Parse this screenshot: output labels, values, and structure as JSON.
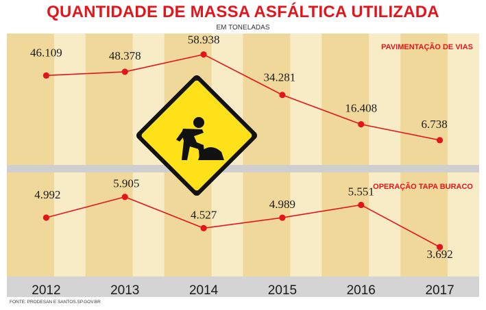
{
  "title": "QUANTIDADE DE MASSA ASFÁLTICA UTILIZADA",
  "subtitle": "EM TONELADAS",
  "source": "FONTE: PRODESAN E SANTOS.SP.GOV.BR",
  "colors": {
    "accent": "#e3151b",
    "band_dark": "#f0d89a",
    "band_light": "#f8ecc6",
    "divider": "#cfcfcf",
    "year_bar": "#d4d4d4"
  },
  "icon": "road-work-sign-icon",
  "chart_data": [
    {
      "type": "line",
      "title": "PAVIMENTAÇÃO DE VIAS",
      "x": [
        "2012",
        "2013",
        "2014",
        "2015",
        "2016",
        "2017"
      ],
      "values": [
        46109,
        48378,
        58938,
        34281,
        16408,
        6738
      ],
      "labels": [
        "46.109",
        "48.378",
        "58.938",
        "34.281",
        "16.408",
        "6.738"
      ],
      "xlabel": "",
      "ylabel": "",
      "ylim": [
        0,
        65000
      ],
      "grid": false
    },
    {
      "type": "line",
      "title": "OPERAÇÃO TAPA BURACO",
      "x": [
        "2012",
        "2013",
        "2014",
        "2015",
        "2016",
        "2017"
      ],
      "values": [
        4992,
        5905,
        4527,
        4989,
        5551,
        3692
      ],
      "labels": [
        "4.992",
        "5.905",
        "4.527",
        "4.989",
        "5.551",
        "3.692"
      ],
      "xlabel": "",
      "ylabel": "",
      "ylim": [
        3000,
        6500
      ],
      "grid": false
    }
  ]
}
